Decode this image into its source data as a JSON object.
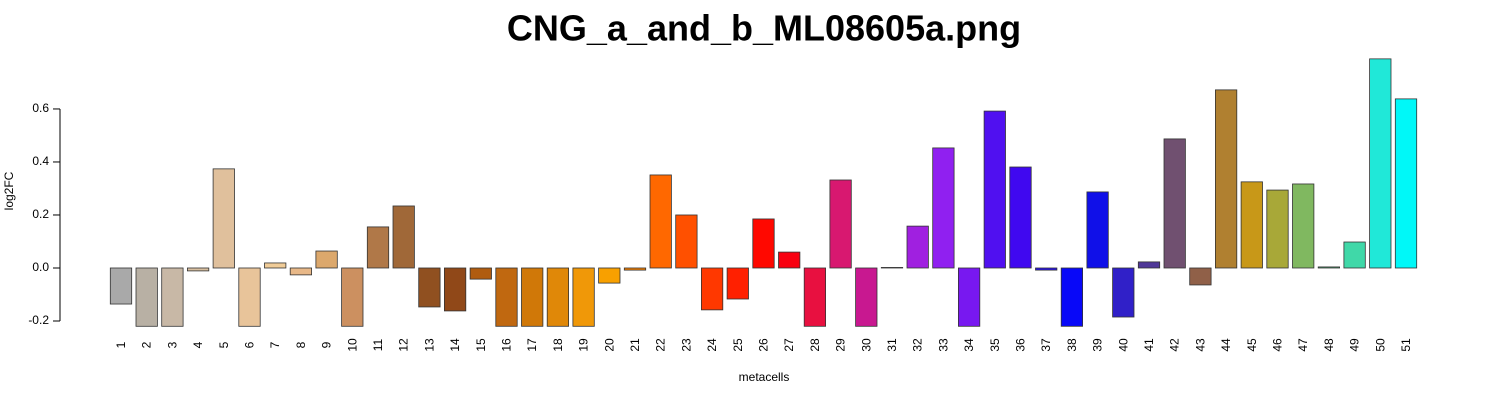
{
  "chart_data": {
    "type": "bar",
    "title": "CNG_a_and_b_ML08605a.png",
    "x_label": "metacells",
    "y_label": "log2FC",
    "categories": [
      "1",
      "2",
      "3",
      "4",
      "5",
      "6",
      "7",
      "8",
      "9",
      "10",
      "11",
      "12",
      "13",
      "14",
      "15",
      "16",
      "17",
      "18",
      "19",
      "20",
      "21",
      "22",
      "23",
      "24",
      "25",
      "26",
      "27",
      "28",
      "29",
      "30",
      "31",
      "32",
      "33",
      "34",
      "35",
      "36",
      "37",
      "38",
      "39",
      "40",
      "41",
      "42",
      "43",
      "44",
      "45",
      "46",
      "47",
      "48",
      "49",
      "50",
      "51"
    ],
    "values": [
      -0.136,
      -0.22,
      -0.22,
      -0.011,
      0.374,
      -0.22,
      0.019,
      -0.026,
      0.064,
      -0.22,
      0.155,
      0.234,
      -0.147,
      -0.162,
      -0.042,
      -0.22,
      -0.22,
      -0.22,
      -0.22,
      -0.057,
      -0.008,
      0.351,
      0.2,
      -0.158,
      -0.117,
      0.185,
      0.06,
      -0.22,
      0.332,
      -0.22,
      0.002,
      0.158,
      0.453,
      -0.22,
      0.592,
      0.381,
      -0.008,
      -0.22,
      0.287,
      -0.185,
      0.023,
      0.487,
      -0.064,
      0.672,
      0.325,
      0.294,
      0.317,
      0.004,
      0.098,
      0.789,
      0.638
    ],
    "colors": [
      "#a9a9a9",
      "#b8b0a4",
      "#c8b8a6",
      "#d8bfa0",
      "#e0c09c",
      "#e8c49a",
      "#f0cc98",
      "#e8b888",
      "#dca86c",
      "#cc9060",
      "#b07848",
      "#a06838",
      "#905020",
      "#904818",
      "#b05c10",
      "#c06810",
      "#d07808",
      "#e08808",
      "#f09808",
      "#f8a000",
      "#f88000",
      "#ff6800",
      "#ff5000",
      "#ff3800",
      "#ff2000",
      "#ff0800",
      "#f80010",
      "#e81040",
      "#d81870",
      "#c81890",
      "#b818b0",
      "#a020e0",
      "#9020f0",
      "#7818f0",
      "#5010f0",
      "#4008f0",
      "#2810f0",
      "#0808f8",
      "#1010e8",
      "#3020c8",
      "#503898",
      "#705070",
      "#906048",
      "#b08030",
      "#c89818",
      "#a8a838",
      "#80b860",
      "#50c880",
      "#40d8a8",
      "#20e8d8",
      "#00f8f8"
    ],
    "ylim": [
      -0.22,
      0.79
    ],
    "yticks": [
      -0.2,
      {
        "value": 0,
        "label": "0.0"
      },
      0.2,
      0.4,
      0.6
    ]
  }
}
